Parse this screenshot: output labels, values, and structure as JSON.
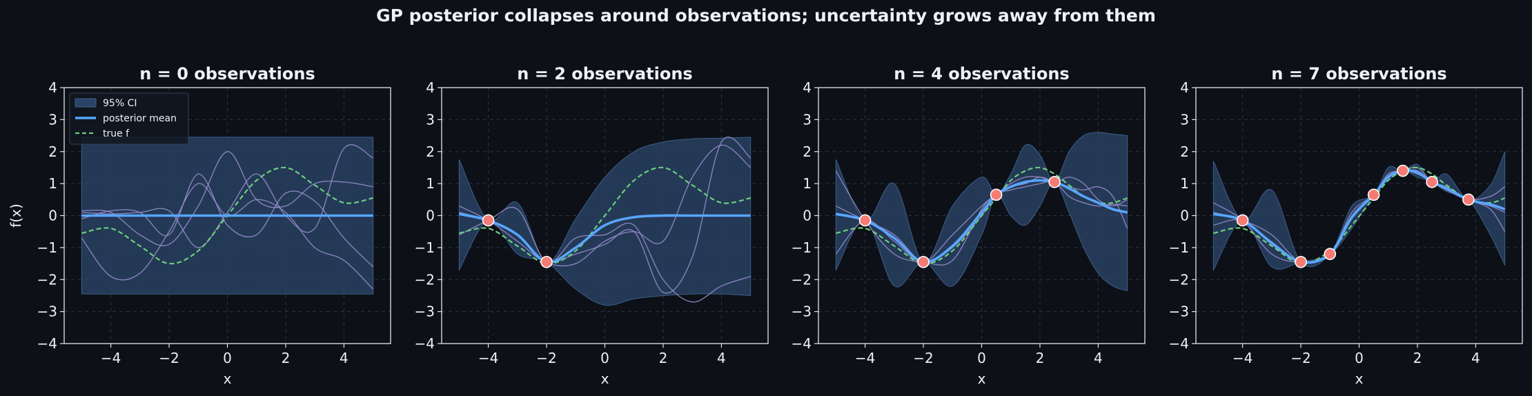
{
  "figure": {
    "suptitle": "GP posterior collapses around observations; uncertainty grows away from them",
    "colors": {
      "background": "#0d1117",
      "axes_edge": "#e6e6e6",
      "ci_fill": "#2a4466",
      "posterior_mean": "#58a6ff",
      "true_f": "#6bcf7f",
      "samples": "#9a8fd0",
      "observation": "#f47c74",
      "grid": "#2d3440",
      "text": "#eef1f5"
    }
  },
  "chart_data": [
    {
      "type": "line",
      "title": "n = 0 observations",
      "xlabel": "x",
      "ylabel": "f(x)",
      "xlim": [
        -5.6,
        5.6
      ],
      "ylim": [
        -4,
        4
      ],
      "xticks": [
        -4,
        -2,
        0,
        2,
        4
      ],
      "yticks": [
        -4,
        -3,
        -2,
        -1,
        0,
        1,
        2,
        3,
        4
      ],
      "grid": true,
      "legend": {
        "placement": "top-left",
        "entries": [
          "95% CI",
          "posterior mean",
          "true f"
        ]
      },
      "x": [
        -5,
        -4,
        -3,
        -2,
        -1,
        0,
        1,
        2,
        3,
        4,
        5
      ],
      "series": [
        {
          "name": "95% CI",
          "kind": "band",
          "lower": [
            -2.45,
            -2.45,
            -2.45,
            -2.45,
            -2.45,
            -2.45,
            -2.45,
            -2.45,
            -2.45,
            -2.45,
            -2.45
          ],
          "upper": [
            2.45,
            2.45,
            2.45,
            2.45,
            2.45,
            2.45,
            2.45,
            2.45,
            2.45,
            2.45,
            2.45
          ]
        },
        {
          "name": "posterior mean",
          "values": [
            0,
            0,
            0,
            0,
            0,
            0,
            0,
            0,
            0,
            0,
            0
          ]
        },
        {
          "name": "true f",
          "values": [
            -0.55,
            -0.4,
            -0.95,
            -1.5,
            -1.1,
            0,
            1.1,
            1.5,
            0.95,
            0.4,
            0.55
          ]
        },
        {
          "kind": "sample",
          "values": [
            -0.1,
            0.15,
            0.1,
            -0.6,
            1.3,
            -0.3,
            -0.6,
            0.7,
            0.45,
            -0.7,
            -1.6
          ]
        },
        {
          "kind": "sample",
          "values": [
            0.15,
            0.1,
            -0.6,
            -0.9,
            0.3,
            2.0,
            0.5,
            0.3,
            1.0,
            1.05,
            0.9
          ]
        },
        {
          "kind": "sample",
          "values": [
            -0.7,
            -1.9,
            -1.8,
            -0.5,
            1.0,
            0.0,
            0.5,
            0.1,
            -1.0,
            -1.4,
            -2.3
          ]
        },
        {
          "kind": "sample",
          "values": [
            0.1,
            0.05,
            0.1,
            0.15,
            -1.0,
            0.1,
            1.3,
            0.0,
            -0.4,
            2.1,
            1.8
          ]
        }
      ],
      "observations": {
        "x": [],
        "y": []
      }
    },
    {
      "type": "line",
      "title": "n = 2 observations",
      "xlabel": "x",
      "ylabel": "",
      "xlim": [
        -5.6,
        5.6
      ],
      "ylim": [
        -4,
        4
      ],
      "xticks": [
        -4,
        -2,
        0,
        2,
        4
      ],
      "yticks": [
        -4,
        -3,
        -2,
        -1,
        0,
        1,
        2,
        3,
        4
      ],
      "grid": true,
      "x": [
        -5,
        -4,
        -3,
        -2,
        -1,
        0,
        1,
        2,
        3,
        4,
        5
      ],
      "series": [
        {
          "name": "95% CI",
          "kind": "band",
          "lower": [
            -1.7,
            -0.15,
            -1.2,
            -1.45,
            -2.3,
            -2.8,
            -2.6,
            -2.5,
            -2.45,
            -2.45,
            -2.5
          ],
          "upper": [
            1.75,
            -0.15,
            0.4,
            -1.45,
            -0.1,
            1.2,
            2.0,
            2.3,
            2.4,
            2.42,
            2.45
          ]
        },
        {
          "name": "posterior mean",
          "values": [
            0.05,
            -0.15,
            -0.6,
            -1.45,
            -1.0,
            -0.3,
            -0.05,
            0,
            0,
            0,
            0
          ]
        },
        {
          "name": "true f",
          "values": [
            -0.55,
            -0.4,
            -0.95,
            -1.5,
            -1.1,
            0,
            1.1,
            1.5,
            0.95,
            0.4,
            0.55
          ]
        },
        {
          "kind": "sample",
          "values": [
            0.3,
            -0.15,
            -0.8,
            -1.45,
            -1.2,
            -0.9,
            -0.5,
            -2.4,
            -1.3,
            2.3,
            1.8
          ]
        },
        {
          "kind": "sample",
          "values": [
            -0.6,
            -0.15,
            0.2,
            -1.45,
            -0.7,
            -0.6,
            -0.3,
            -2.0,
            -2.7,
            -2.2,
            -1.9
          ]
        },
        {
          "kind": "sample",
          "values": [
            0.1,
            -0.15,
            -0.6,
            -1.45,
            -1.5,
            -0.8,
            -0.5,
            -0.8,
            1.2,
            2.2,
            1.5
          ]
        }
      ],
      "observations": {
        "x": [
          -4,
          -2
        ],
        "y": [
          -0.15,
          -1.45
        ]
      }
    },
    {
      "type": "line",
      "title": "n = 4 observations",
      "xlabel": "x",
      "ylabel": "",
      "xlim": [
        -5.6,
        5.6
      ],
      "ylim": [
        -4,
        4
      ],
      "xticks": [
        -4,
        -2,
        0,
        2,
        4
      ],
      "yticks": [
        -4,
        -3,
        -2,
        -1,
        0,
        1,
        2,
        3,
        4
      ],
      "grid": true,
      "x": [
        -5,
        -4,
        -3,
        -2,
        -1,
        0,
        0.5,
        1,
        1.5,
        2,
        2.5,
        3,
        3.5,
        4,
        4.5,
        5
      ],
      "series": [
        {
          "name": "95% CI",
          "kind": "band",
          "lower": [
            -1.7,
            -0.15,
            -2.2,
            -1.45,
            -2.2,
            -0.6,
            0.65,
            0.0,
            -0.3,
            0.3,
            1.05,
            0.1,
            -1.0,
            -1.8,
            -2.2,
            -2.35
          ],
          "upper": [
            1.75,
            -0.15,
            1.0,
            -1.45,
            0.3,
            1.2,
            0.65,
            1.3,
            2.2,
            1.9,
            1.05,
            2.0,
            2.5,
            2.6,
            2.55,
            2.5
          ]
        },
        {
          "name": "posterior mean",
          "values": [
            0.05,
            -0.15,
            -0.7,
            -1.45,
            -0.95,
            0.1,
            0.65,
            0.9,
            1.05,
            1.1,
            1.05,
            0.85,
            0.6,
            0.4,
            0.2,
            0.1
          ]
        },
        {
          "name": "true f",
          "values": [
            -0.55,
            -0.4,
            -0.95,
            -1.5,
            -1.1,
            0,
            0.55,
            1.1,
            1.4,
            1.5,
            1.3,
            0.95,
            0.6,
            0.4,
            0.4,
            0.55
          ]
        },
        {
          "kind": "sample",
          "values": [
            1.4,
            -0.15,
            -1.2,
            -1.45,
            -1.4,
            0.2,
            0.65,
            1.0,
            1.2,
            1.2,
            1.05,
            1.2,
            1.0,
            0.5,
            0.3,
            0.5
          ]
        },
        {
          "kind": "sample",
          "values": [
            -1.2,
            -0.15,
            -0.8,
            -1.45,
            -0.6,
            0.3,
            0.65,
            0.9,
            1.0,
            1.2,
            1.05,
            0.9,
            0.8,
            0.9,
            0.6,
            -0.4
          ]
        },
        {
          "kind": "sample",
          "values": [
            0.3,
            -0.15,
            -0.6,
            -1.45,
            -1.0,
            0.0,
            0.65,
            0.8,
            0.9,
            1.0,
            1.05,
            0.6,
            0.4,
            0.3,
            0.35,
            0.3
          ]
        }
      ],
      "observations": {
        "x": [
          -4,
          -2,
          0.5,
          2.5
        ],
        "y": [
          -0.15,
          -1.45,
          0.65,
          1.05
        ]
      }
    },
    {
      "type": "line",
      "title": "n = 7 observations",
      "xlabel": "x",
      "ylabel": "",
      "xlim": [
        -5.6,
        5.6
      ],
      "ylim": [
        -4,
        4
      ],
      "xticks": [
        -4,
        -2,
        0,
        2,
        4
      ],
      "yticks": [
        -4,
        -3,
        -2,
        -1,
        0,
        1,
        2,
        3,
        4
      ],
      "grid": true,
      "x": [
        -5,
        -4,
        -3,
        -2,
        -1,
        -0.25,
        0.5,
        1,
        1.5,
        2,
        2.5,
        3,
        3.75,
        4.5,
        5
      ],
      "series": [
        {
          "name": "95% CI",
          "kind": "band",
          "lower": [
            -1.7,
            -0.15,
            -1.6,
            -1.45,
            -1.2,
            -0.4,
            0.65,
            1.1,
            1.4,
            1.2,
            1.05,
            0.75,
            0.5,
            -0.6,
            -1.55
          ],
          "upper": [
            1.7,
            -0.15,
            0.8,
            -1.45,
            -1.2,
            0.3,
            0.65,
            1.5,
            1.4,
            1.6,
            1.05,
            1.3,
            0.5,
            0.95,
            2.0
          ]
        },
        {
          "name": "posterior mean",
          "values": [
            0.05,
            -0.15,
            -0.85,
            -1.45,
            -1.2,
            -0.05,
            0.65,
            1.2,
            1.4,
            1.35,
            1.05,
            0.85,
            0.5,
            0.35,
            0.2
          ]
        },
        {
          "name": "true f",
          "values": [
            -0.55,
            -0.4,
            -0.95,
            -1.5,
            -1.1,
            -0.3,
            0.55,
            1.1,
            1.4,
            1.5,
            1.3,
            0.95,
            0.5,
            0.4,
            0.55
          ]
        },
        {
          "kind": "sample",
          "values": [
            0.4,
            -0.15,
            -1.2,
            -1.45,
            -1.2,
            0.0,
            0.65,
            1.3,
            1.4,
            1.5,
            1.05,
            0.9,
            0.5,
            0.2,
            -0.5
          ]
        },
        {
          "kind": "sample",
          "values": [
            -0.3,
            -0.15,
            -0.9,
            -1.45,
            -1.2,
            -0.1,
            0.65,
            1.2,
            1.4,
            1.3,
            1.05,
            0.8,
            0.5,
            0.6,
            0.9
          ]
        },
        {
          "kind": "sample",
          "values": [
            0.1,
            -0.15,
            -0.6,
            -1.45,
            -1.2,
            0.1,
            0.65,
            1.25,
            1.4,
            1.4,
            1.05,
            0.85,
            0.5,
            0.3,
            0.1
          ]
        }
      ],
      "observations": {
        "x": [
          -4,
          -2,
          -1,
          0.5,
          1.5,
          2.5,
          3.75
        ],
        "y": [
          -0.15,
          -1.45,
          -1.2,
          0.65,
          1.4,
          1.05,
          0.5
        ]
      }
    }
  ]
}
